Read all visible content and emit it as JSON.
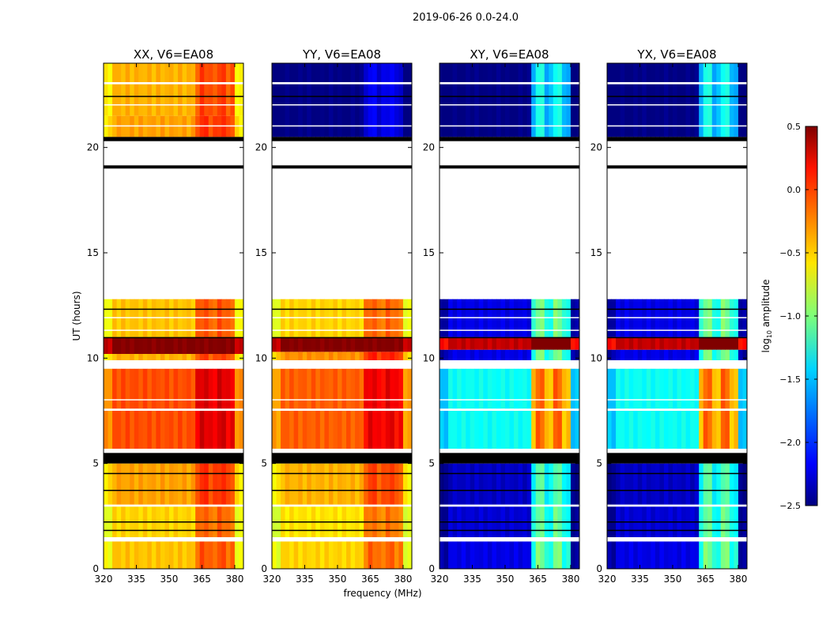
{
  "chart_data": {
    "type": "heatmap",
    "suptitle": "2019-06-26 0.0-24.0",
    "xlabel": "frequency (MHz)",
    "ylabel": "UT (hours)",
    "xlim": [
      320,
      384
    ],
    "ylim": [
      0,
      24
    ],
    "xticks": [
      "320",
      "335",
      "350",
      "365",
      "380"
    ],
    "xtick_values": [
      320,
      335,
      350,
      365,
      380
    ],
    "yticks": [
      "0",
      "5",
      "10",
      "15",
      "20"
    ],
    "ytick_values": [
      0,
      5,
      10,
      15,
      20
    ],
    "colorbar": {
      "label_main": "log",
      "label_sub": "10",
      "label_rest": " amplitude",
      "range": [
        -2.5,
        0.5
      ],
      "ticks": [
        "0.5",
        "0.0",
        "−0.5",
        "−1.0",
        "−1.5",
        "−2.0",
        "−2.5"
      ],
      "tick_values": [
        0.5,
        0.0,
        -0.5,
        -1.0,
        -1.5,
        -2.0,
        -2.5
      ],
      "colormap": "jet"
    },
    "rfi_band_mhz": [
      362,
      380
    ],
    "panels": [
      {
        "title": "XX, V6=EA08",
        "rfi_boost": 0.35,
        "blocks": [
          [
            0,
            1.3,
            -0.45
          ],
          [
            1.5,
            3.0,
            -0.5
          ],
          [
            3.0,
            5.0,
            -0.35
          ],
          [
            5.7,
            7.5,
            -0.1
          ],
          [
            7.6,
            9.5,
            -0.1
          ],
          [
            9.9,
            10.2,
            -0.4
          ],
          [
            10.2,
            11.0,
            0.5
          ],
          [
            11.0,
            12.8,
            -0.45
          ],
          [
            20.5,
            21.5,
            -0.35
          ],
          [
            21.5,
            24.0,
            -0.4
          ]
        ]
      },
      {
        "title": "YY, V6=EA08",
        "rfi_boost": 0.35,
        "blocks": [
          [
            0,
            1.3,
            -0.5
          ],
          [
            1.5,
            3.0,
            -0.55
          ],
          [
            3.0,
            5.0,
            -0.4
          ],
          [
            5.7,
            7.5,
            -0.15
          ],
          [
            7.6,
            9.5,
            -0.15
          ],
          [
            9.9,
            10.3,
            -0.3
          ],
          [
            10.3,
            11.0,
            0.5
          ],
          [
            11.0,
            12.8,
            -0.5
          ],
          [
            20.5,
            24.0,
            -2.5
          ]
        ]
      },
      {
        "title": "XY, V6=EA08",
        "rfi_boost": 1.2,
        "blocks": [
          [
            0,
            1.3,
            -2.2
          ],
          [
            1.5,
            3.0,
            -2.25
          ],
          [
            3.0,
            5.0,
            -2.3
          ],
          [
            5.7,
            7.5,
            -1.35
          ],
          [
            7.6,
            9.5,
            -1.35
          ],
          [
            9.9,
            10.4,
            -2.2
          ],
          [
            10.4,
            11.0,
            0.3
          ],
          [
            11.0,
            12.8,
            -2.2
          ],
          [
            20.5,
            24.0,
            -2.5
          ]
        ]
      },
      {
        "title": "YX, V6=EA08",
        "rfi_boost": 1.2,
        "blocks": [
          [
            0,
            1.3,
            -2.2
          ],
          [
            1.5,
            3.0,
            -2.25
          ],
          [
            3.0,
            5.0,
            -2.3
          ],
          [
            5.7,
            7.5,
            -1.35
          ],
          [
            7.6,
            9.5,
            -1.35
          ],
          [
            9.9,
            10.4,
            -2.2
          ],
          [
            10.4,
            11.0,
            0.3
          ],
          [
            11.0,
            12.8,
            -2.2
          ],
          [
            20.5,
            24.0,
            -2.5
          ]
        ]
      }
    ],
    "black_flag_hours": [
      [
        5.0,
        5.5
      ],
      [
        19.0,
        19.15
      ],
      [
        20.3,
        20.5
      ],
      [
        10.95,
        11.0
      ],
      [
        3.7,
        3.75
      ],
      [
        4.5,
        4.55
      ],
      [
        2.2,
        2.25
      ],
      [
        1.8,
        1.85
      ],
      [
        12.3,
        12.35
      ],
      [
        22.4,
        22.45
      ]
    ],
    "white_gap_hours": [
      [
        1.3,
        1.5
      ],
      [
        2.95,
        3.05
      ],
      [
        5.5,
        5.7
      ],
      [
        7.5,
        7.6
      ],
      [
        8.0,
        8.05
      ],
      [
        9.5,
        9.9
      ],
      [
        11.3,
        11.35
      ],
      [
        11.9,
        11.95
      ],
      [
        21.0,
        21.05
      ],
      [
        22.0,
        22.05
      ],
      [
        23.0,
        23.1
      ]
    ]
  }
}
